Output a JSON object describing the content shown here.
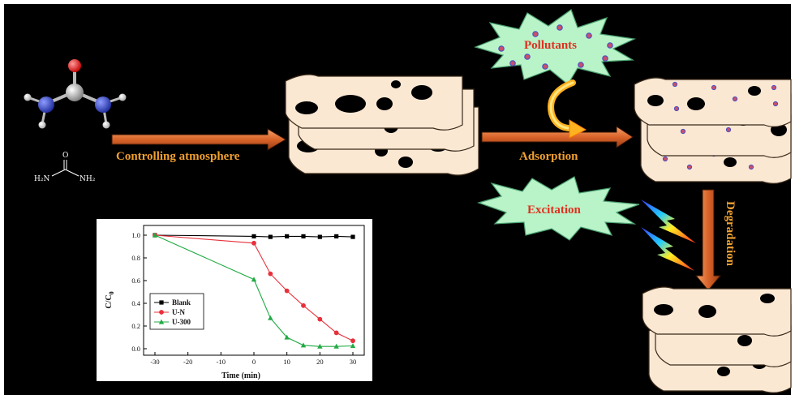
{
  "labels": {
    "controlling": "Controlling atmosphere",
    "adsorption": "Adsorption",
    "pollutants": "Pollutants",
    "excitation": "Excitation",
    "degradation": "Degradation"
  },
  "molecule": {
    "o": "O",
    "nh2_left": "H₂N",
    "nh2_right": "NH₂"
  },
  "colors": {
    "background": "#000000",
    "arrow": "#d9642a",
    "label_orange": "#f0a030",
    "label_red": "#e0301f",
    "sheet": "#fbe8d3",
    "burst": "#b9f3c8",
    "pollutant_dot": "#c94f6d"
  },
  "chart_data": {
    "type": "line",
    "xlabel": "Time (min)",
    "ylabel": "C/C0",
    "xlim": [
      -30,
      30
    ],
    "ylim": [
      0,
      1.0
    ],
    "x_ticks": [
      "-30",
      "-20",
      "-10",
      "0",
      "10",
      "20",
      "30"
    ],
    "y_ticks": [
      "0.0",
      "0.2",
      "0.4",
      "0.6",
      "0.8",
      "1.0"
    ],
    "legend_position": "lower-left",
    "series": [
      {
        "name": "Blank",
        "color": "#000000",
        "marker": "square",
        "x": [
          -30,
          0,
          5,
          10,
          15,
          20,
          25,
          30
        ],
        "y": [
          1.0,
          0.99,
          0.985,
          0.99,
          0.99,
          0.985,
          0.99,
          0.985
        ]
      },
      {
        "name": "U-N",
        "color": "#e8303a",
        "marker": "circle",
        "x": [
          -30,
          0,
          5,
          10,
          15,
          20,
          25,
          30
        ],
        "y": [
          1.0,
          0.93,
          0.66,
          0.51,
          0.38,
          0.26,
          0.14,
          0.07
        ]
      },
      {
        "name": "U-300",
        "color": "#22aa44",
        "marker": "triangle",
        "x": [
          -30,
          0,
          5,
          10,
          15,
          20,
          25,
          30
        ],
        "y": [
          1.0,
          0.61,
          0.27,
          0.1,
          0.03,
          0.02,
          0.02,
          0.025
        ]
      }
    ]
  }
}
